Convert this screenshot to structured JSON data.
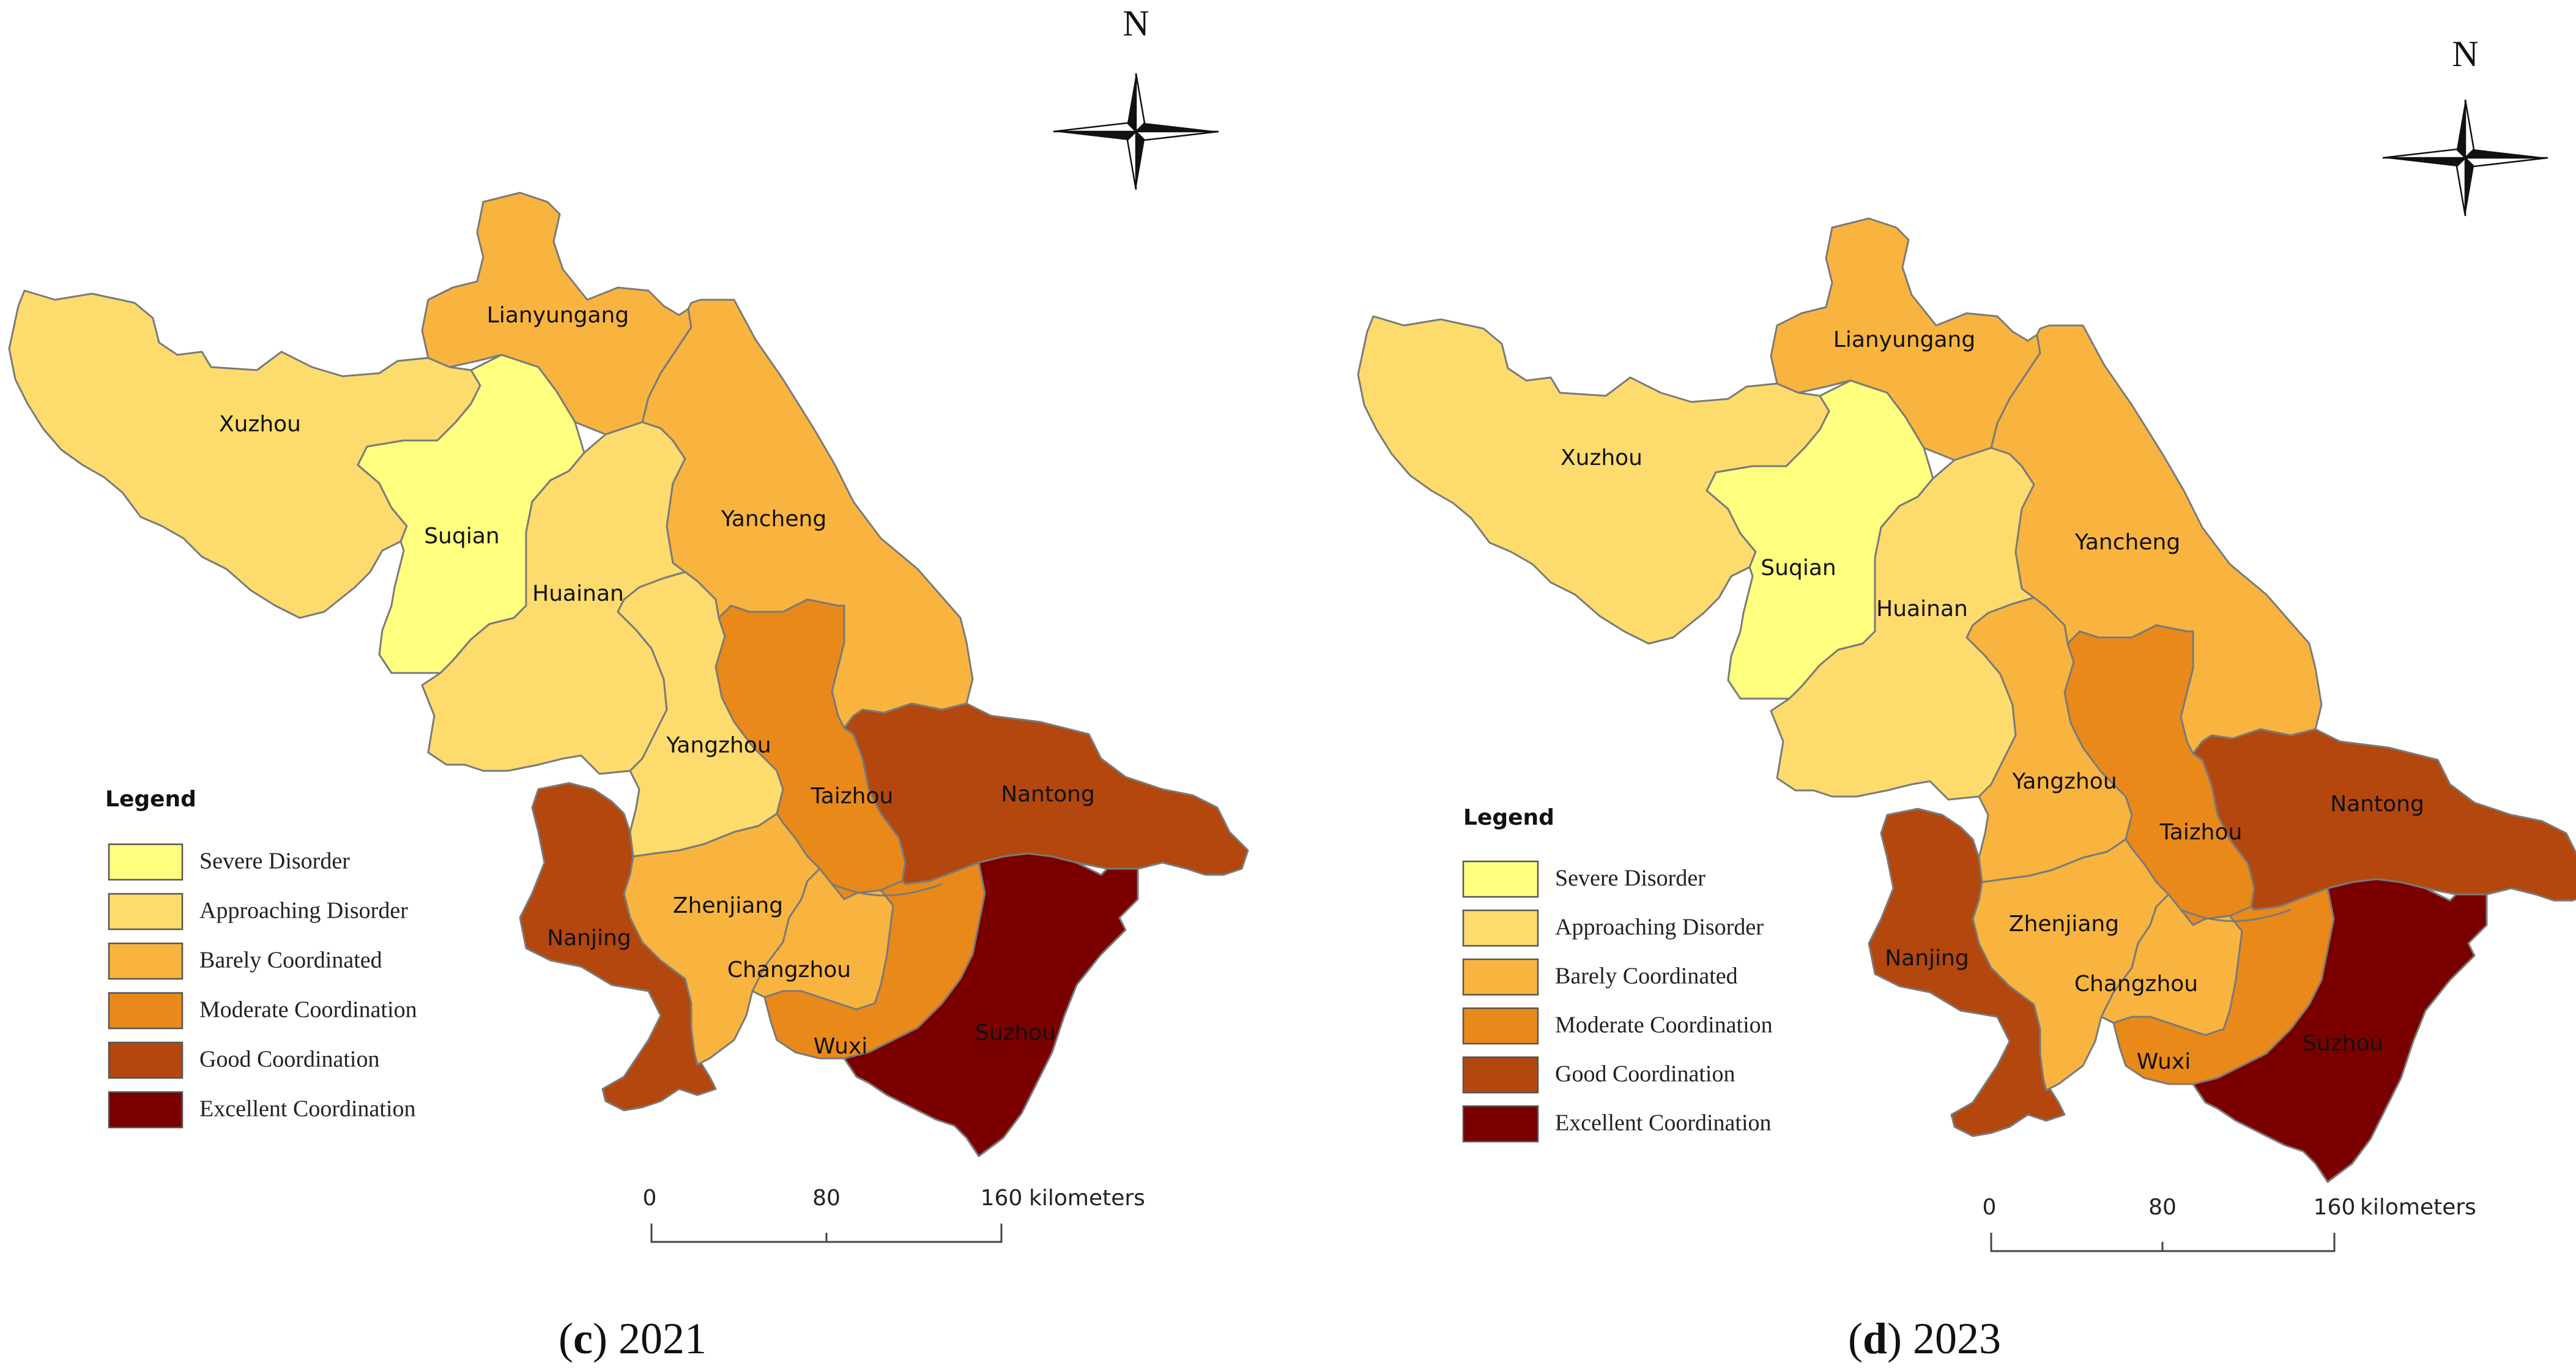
{
  "colors": {
    "severe_disorder": "#FFFF80",
    "approaching_disorder": "#FDDB6D",
    "barely_coordinated": "#F8B43F",
    "moderate_coordination": "#E9891A",
    "good_coordination": "#B3470E",
    "excellent_coordination": "#7A0000"
  },
  "panels": [
    {
      "caption_letter": "c",
      "caption_year": "2021",
      "legend_title": "Legend",
      "regions": {
        "xuzhou": {
          "label": "Xuzhou",
          "class": "approaching_disorder"
        },
        "lianyungang": {
          "label": "Lianyungang",
          "class": "barely_coordinated"
        },
        "suqian": {
          "label": "Suqian",
          "class": "severe_disorder"
        },
        "huainan": {
          "label": "Huainan",
          "class": "approaching_disorder"
        },
        "yancheng": {
          "label": "Yancheng",
          "class": "barely_coordinated"
        },
        "yangzhou": {
          "label": "Yangzhou",
          "class": "approaching_disorder"
        },
        "taizhou": {
          "label": "Taizhou",
          "class": "moderate_coordination"
        },
        "nantong": {
          "label": "Nantong",
          "class": "good_coordination"
        },
        "nanjing": {
          "label": "Nanjing",
          "class": "good_coordination"
        },
        "zhenjiang": {
          "label": "Zhenjiang",
          "class": "barely_coordinated"
        },
        "changzhou": {
          "label": "Changzhou",
          "class": "barely_coordinated"
        },
        "wuxi": {
          "label": "Wuxi",
          "class": "moderate_coordination"
        },
        "suzhou": {
          "label": "Suzhou",
          "class": "excellent_coordination"
        }
      }
    },
    {
      "caption_letter": "d",
      "caption_year": "2023",
      "legend_title": "Legend",
      "regions": {
        "xuzhou": {
          "label": "Xuzhou",
          "class": "approaching_disorder"
        },
        "lianyungang": {
          "label": "Lianyungang",
          "class": "barely_coordinated"
        },
        "suqian": {
          "label": "Suqian",
          "class": "severe_disorder"
        },
        "huainan": {
          "label": "Huainan",
          "class": "approaching_disorder"
        },
        "yancheng": {
          "label": "Yancheng",
          "class": "barely_coordinated"
        },
        "yangzhou": {
          "label": "Yangzhou",
          "class": "barely_coordinated"
        },
        "taizhou": {
          "label": "Taizhou",
          "class": "moderate_coordination"
        },
        "nantong": {
          "label": "Nantong",
          "class": "good_coordination"
        },
        "nanjing": {
          "label": "Nanjing",
          "class": "good_coordination"
        },
        "zhenjiang": {
          "label": "Zhenjiang",
          "class": "barely_coordinated"
        },
        "changzhou": {
          "label": "Changzhou",
          "class": "barely_coordinated"
        },
        "wuxi": {
          "label": "Wuxi",
          "class": "moderate_coordination"
        },
        "suzhou": {
          "label": "Suzhou",
          "class": "excellent_coordination"
        }
      }
    }
  ],
  "legend_items": [
    {
      "key": "severe_disorder",
      "label": "Severe Disorder"
    },
    {
      "key": "approaching_disorder",
      "label": "Approaching Disorder"
    },
    {
      "key": "barely_coordinated",
      "label": "Barely Coordinated"
    },
    {
      "key": "moderate_coordination",
      "label": "Moderate Coordination"
    },
    {
      "key": "good_coordination",
      "label": "Good Coordination"
    },
    {
      "key": "excellent_coordination",
      "label": "Excellent Coordination"
    }
  ],
  "scale_bar": {
    "ticks": [
      "0",
      "80",
      "160"
    ],
    "unit": "kilometers"
  },
  "north_arrow": {
    "letter": "N",
    "icon": "north-arrow-icon"
  }
}
